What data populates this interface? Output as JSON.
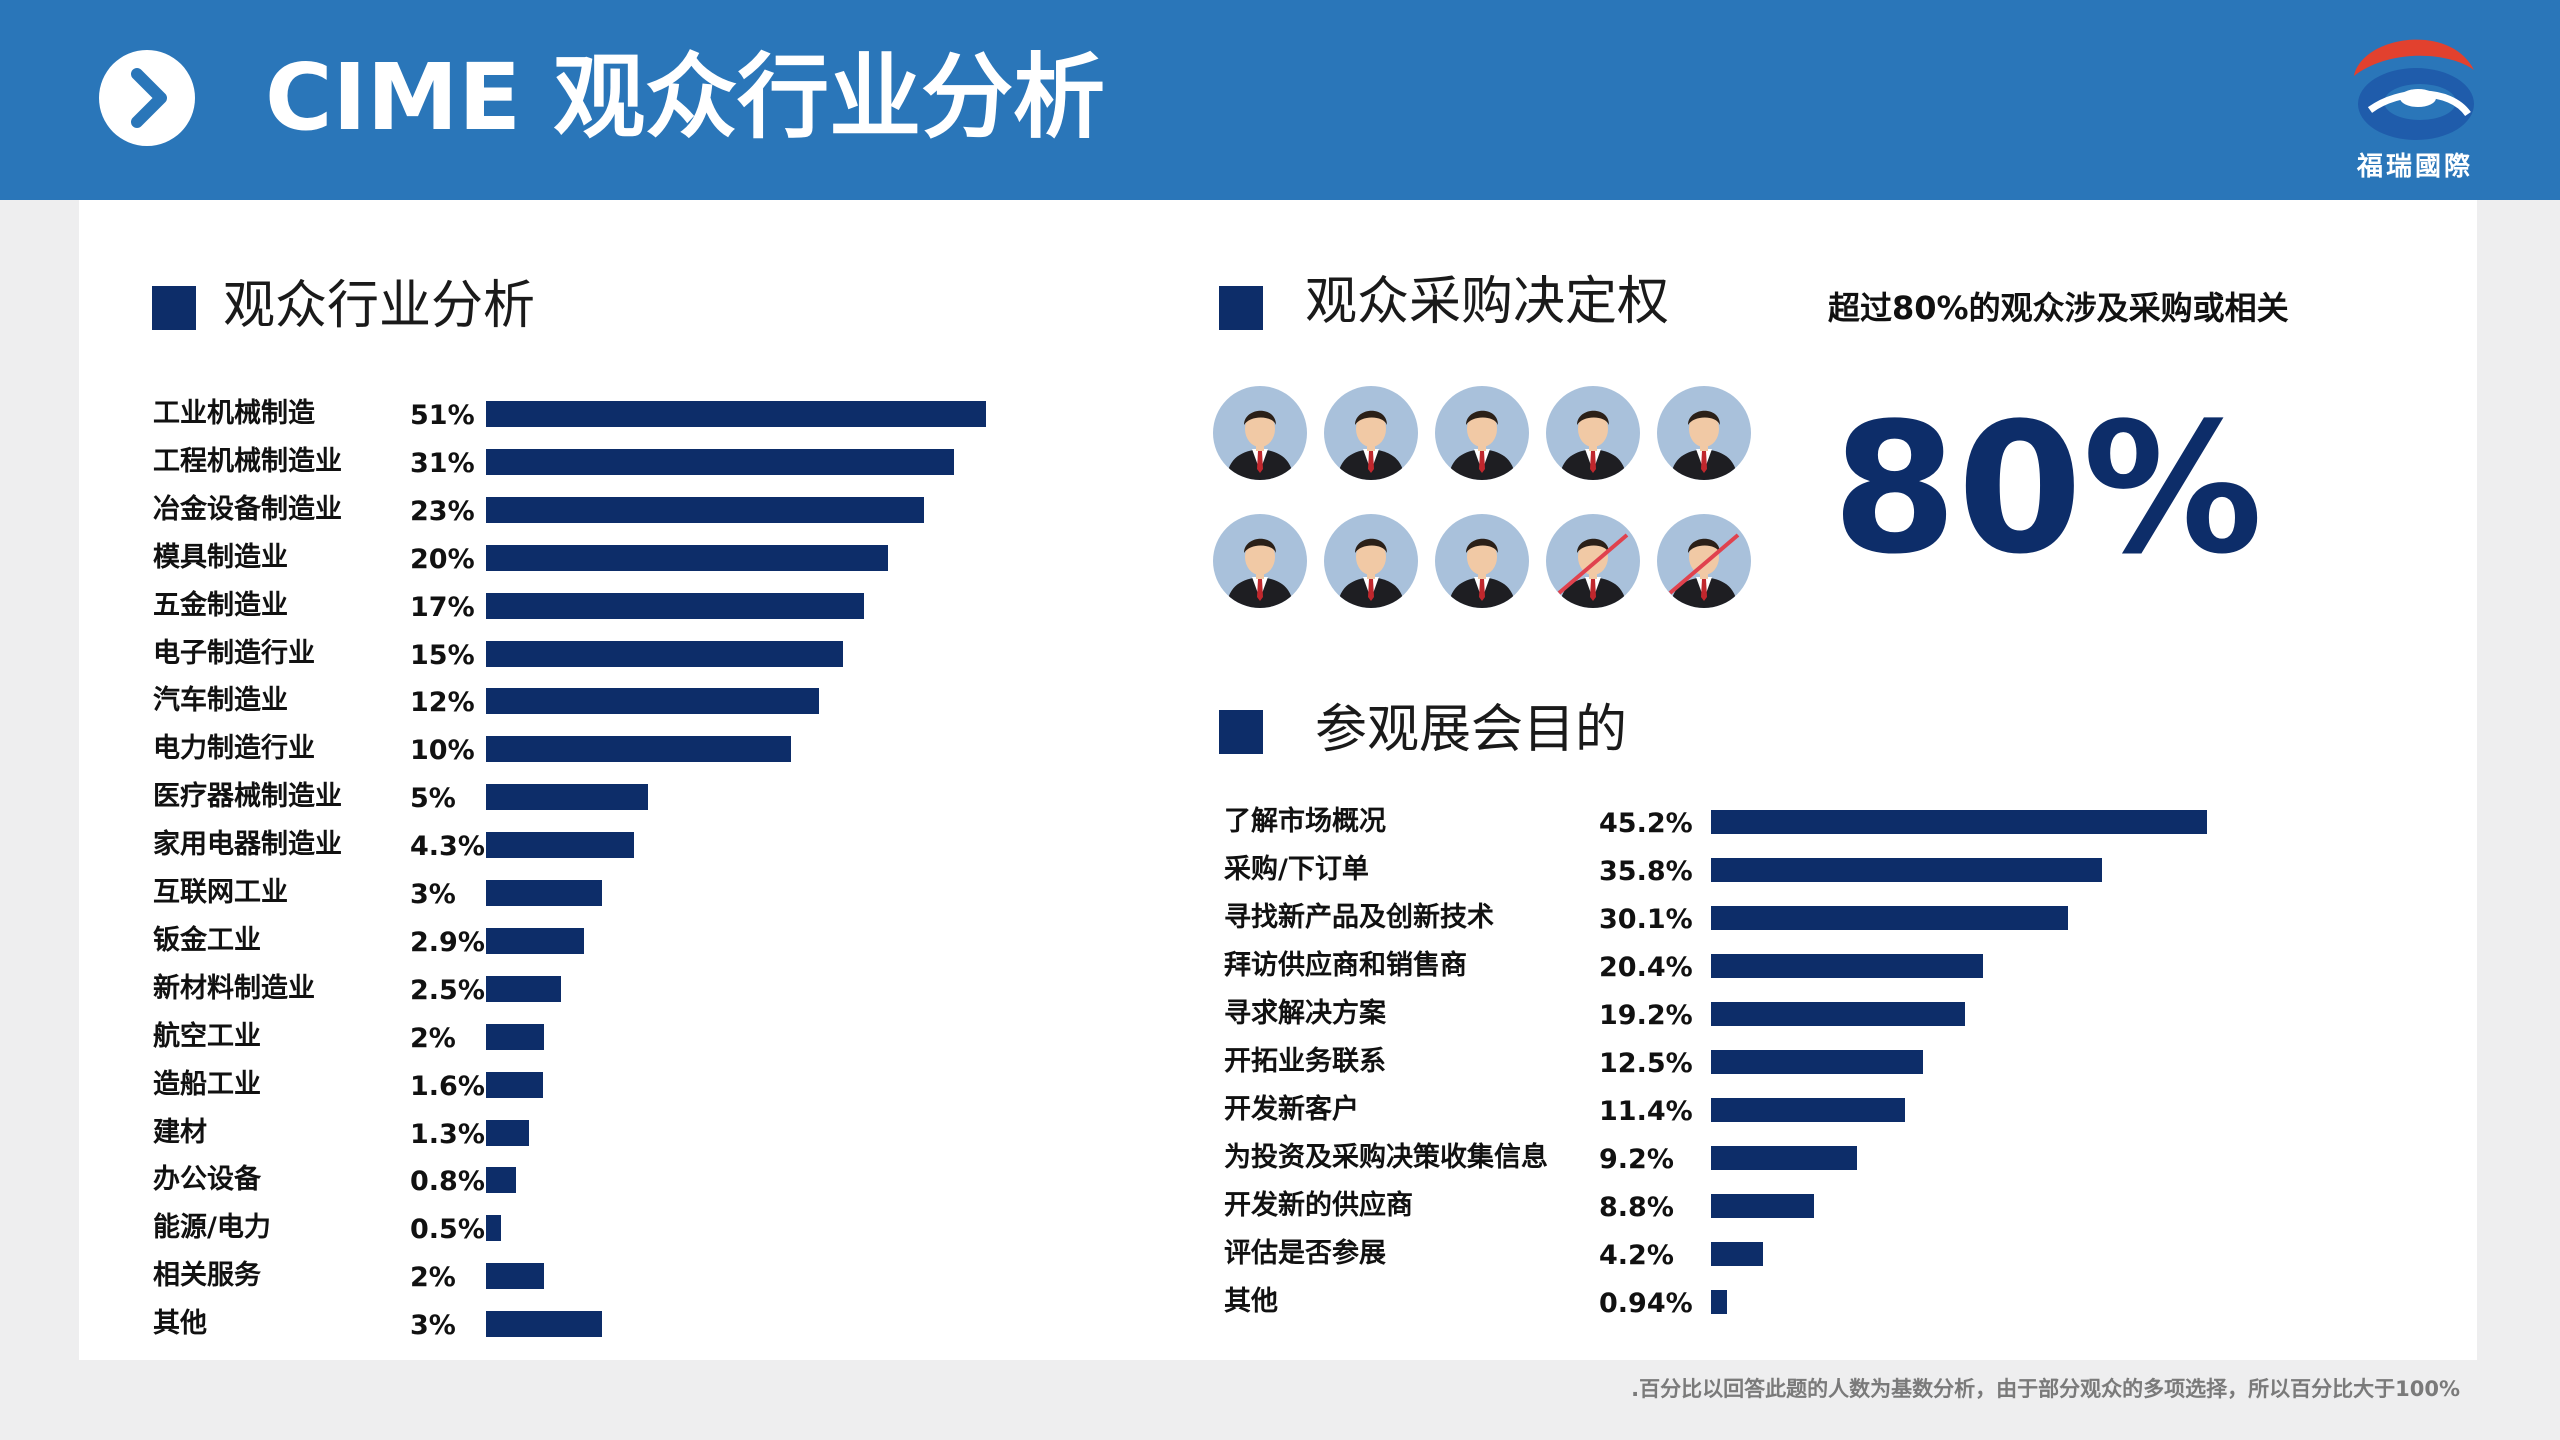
{
  "header": {
    "title": "CIME 观众行业分析",
    "logo_text": "福瑞國際"
  },
  "colors": {
    "header_bg": "#2a76b9",
    "bar": "#0d2d69",
    "logo_red": "#e2412e",
    "logo_blue": "#1f5cab"
  },
  "icons": {
    "header": "chevron-right-icon",
    "logo": "company-logo",
    "person": "businessman-icon"
  },
  "industry": {
    "title": "观众行业分析"
  },
  "purchase": {
    "title": "观众采购决定权",
    "claim": "超过80%的观众涉及采购或相关",
    "big_value": "80%",
    "people_total": 10,
    "people_crossed": 2
  },
  "purpose": {
    "title": "参观展会目的"
  },
  "chart_data": [
    {
      "type": "bar",
      "orientation": "horizontal",
      "title": "观众行业分析",
      "categories": [
        "工业机械制造",
        "工程机械制造业",
        "冶金设备制造业",
        "模具制造业",
        "五金制造业",
        "电子制造行业",
        "汽车制造业",
        "电力制造行业",
        "医疗器械制造业",
        "家用电器制造业",
        "互联网工业",
        "钣金工业",
        "新材料制造业",
        "航空工业",
        "造船工业",
        "建材",
        "办公设备",
        "能源/电力",
        "相关服务",
        "其他"
      ],
      "value_labels": [
        "51%",
        "31%",
        "23%",
        "20%",
        "17%",
        "15%",
        "12%",
        "10%",
        "5%",
        "4.3%",
        "3%",
        "2.9%",
        "2.5%",
        "2%",
        "1.6%",
        "1.3%",
        "0.8%",
        "0.5%",
        "2%",
        "3%"
      ],
      "values": [
        51,
        31,
        23,
        20,
        17,
        15,
        12,
        10,
        5,
        4.3,
        3,
        2.9,
        2.5,
        2,
        1.6,
        1.3,
        0.8,
        0.5,
        2,
        3
      ],
      "bar_lengths_shown": [
        500,
        468,
        438,
        402,
        378,
        357,
        333,
        305,
        162,
        148,
        116,
        98,
        75,
        58,
        57,
        43,
        30,
        15,
        58,
        116
      ]
    },
    {
      "type": "bar",
      "orientation": "horizontal",
      "title": "参观展会目的",
      "categories": [
        "了解市场概况",
        "采购/下订单",
        "寻找新产品及创新技术",
        "拜访供应商和销售商",
        "寻求解决方案",
        "开拓业务联系",
        "开发新客户",
        "为投资及采购决策收集信息",
        "开发新的供应商",
        "评估是否参展",
        "其他"
      ],
      "value_labels": [
        "45.2%",
        "35.8%",
        "30.1%",
        "20.4%",
        "19.2%",
        "12.5%",
        "11.4%",
        "9.2%",
        "8.8%",
        "4.2%",
        "0.94%"
      ],
      "values": [
        45.2,
        35.8,
        30.1,
        20.4,
        19.2,
        12.5,
        11.4,
        9.2,
        8.8,
        4.2,
        0.94
      ],
      "bar_lengths_shown": [
        496,
        391,
        357,
        272,
        254,
        212,
        194,
        146,
        103,
        52,
        16
      ]
    }
  ],
  "footnote": ".百分比以回答此题的人数为基数分析，由于部分观众的多项选择，所以百分比大于100%"
}
